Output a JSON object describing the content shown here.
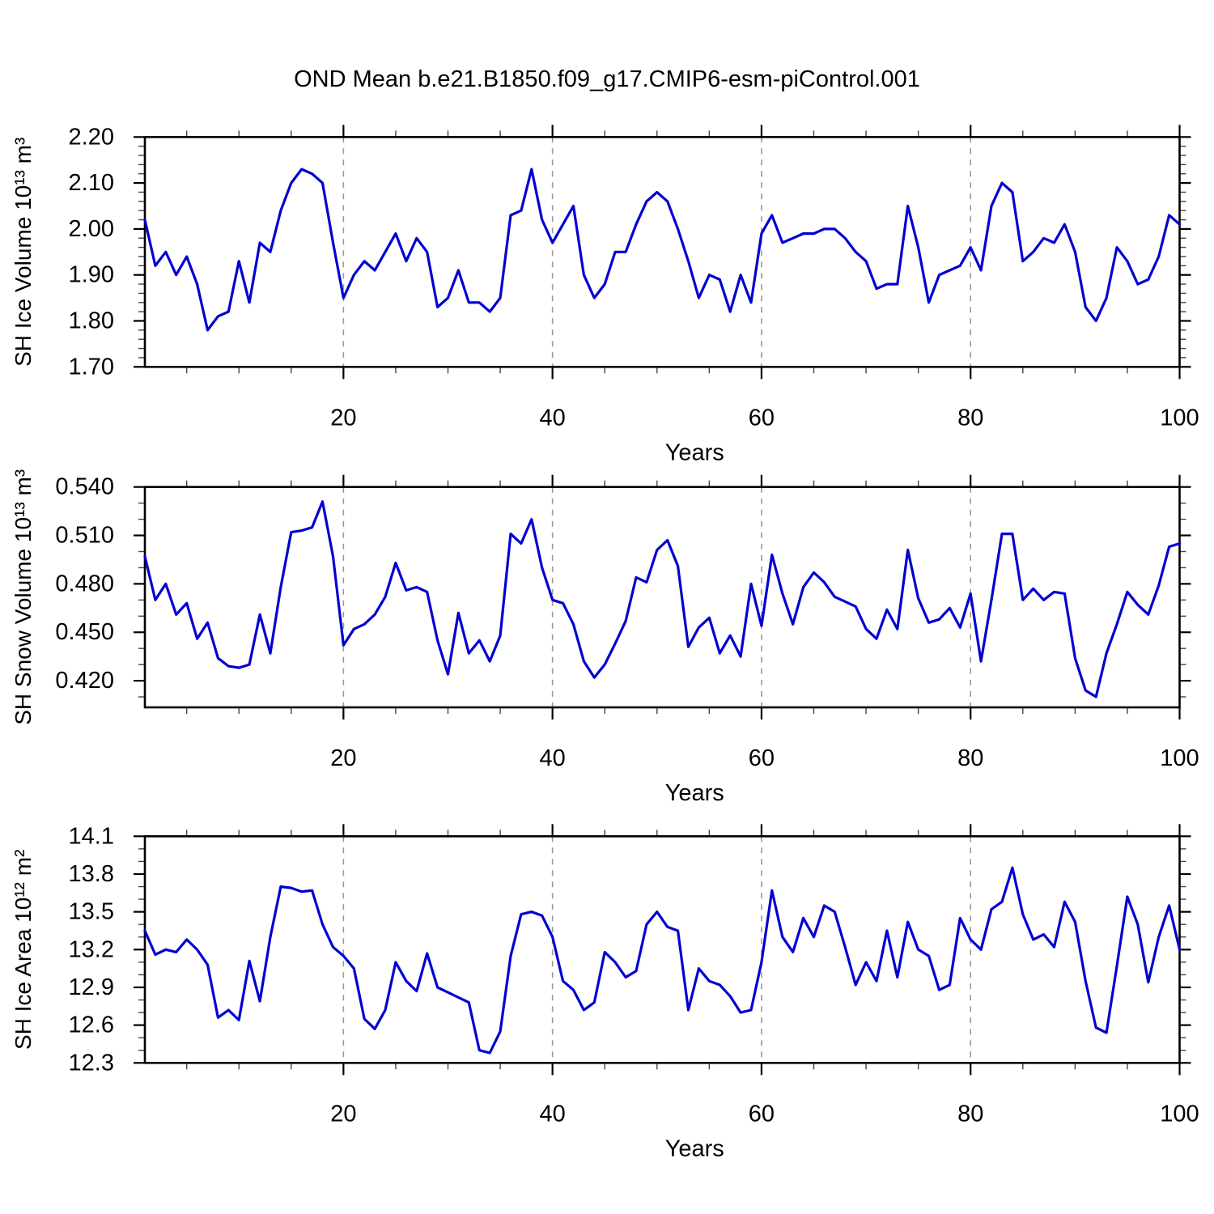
{
  "title": "OND Mean b.e21.B1850.f09_g17.CMIP6-esm-piControl.001",
  "colors": {
    "line": "#0000D2",
    "grid": "#999999",
    "frame": "#000000",
    "background": "#FFFFFF"
  },
  "chart_data": [
    {
      "type": "line",
      "panel": "ice-volume",
      "ylabel": "SH Ice Volume 10¹³ m³",
      "xlabel": "Years",
      "ylim": [
        1.7,
        2.2
      ],
      "yticks": [
        1.7,
        1.8,
        1.9,
        2.0,
        2.1,
        2.2
      ],
      "ytick_labels": [
        "1.70",
        "1.80",
        "1.90",
        "2.00",
        "2.10",
        "2.20"
      ],
      "yminor_step": 0.02,
      "xlim": [
        1,
        100
      ],
      "xticks": [
        20,
        40,
        60,
        80,
        100
      ],
      "xtick_labels": [
        "20",
        "40",
        "60",
        "80",
        "100"
      ],
      "xminor_step": 5,
      "grid_x": [
        20,
        40,
        60,
        80
      ],
      "x_start": 1,
      "values": [
        2.02,
        1.92,
        1.95,
        1.9,
        1.94,
        1.88,
        1.78,
        1.81,
        1.82,
        1.93,
        1.84,
        1.97,
        1.95,
        2.04,
        2.1,
        2.13,
        2.12,
        2.1,
        1.97,
        1.85,
        1.9,
        1.93,
        1.91,
        1.95,
        1.99,
        1.93,
        1.98,
        1.95,
        1.83,
        1.85,
        1.91,
        1.84,
        1.84,
        1.82,
        1.85,
        2.03,
        2.04,
        2.13,
        2.02,
        1.97,
        2.01,
        2.05,
        1.9,
        1.85,
        1.88,
        1.95,
        1.95,
        2.01,
        2.06,
        2.08,
        2.06,
        2.0,
        1.93,
        1.85,
        1.9,
        1.89,
        1.82,
        1.9,
        1.84,
        1.99,
        2.03,
        1.97,
        1.98,
        1.99,
        1.99,
        2.0,
        2.0,
        1.98,
        1.95,
        1.93,
        1.87,
        1.88,
        1.88,
        2.05,
        1.96,
        1.84,
        1.9,
        1.91,
        1.92,
        1.96,
        1.91,
        2.05,
        2.1,
        2.08,
        1.93,
        1.95,
        1.98,
        1.97,
        2.01,
        1.95,
        1.83,
        1.8,
        1.85,
        1.96,
        1.93,
        1.88,
        1.89,
        1.94,
        2.03,
        2.01
      ]
    },
    {
      "type": "line",
      "panel": "snow-volume",
      "ylabel": "SH Snow Volume 10¹³ m³",
      "xlabel": "Years",
      "ylim": [
        0.4035,
        0.54
      ],
      "yticks": [
        0.42,
        0.45,
        0.48,
        0.51,
        0.54
      ],
      "ytick_labels": [
        "0.420",
        "0.450",
        "0.480",
        "0.510",
        "0.540"
      ],
      "yminor_step": 0.01,
      "xlim": [
        1,
        100
      ],
      "xticks": [
        20,
        40,
        60,
        80,
        100
      ],
      "xtick_labels": [
        "20",
        "40",
        "60",
        "80",
        "100"
      ],
      "xminor_step": 5,
      "grid_x": [
        20,
        40,
        60,
        80
      ],
      "x_start": 1,
      "values": [
        0.497,
        0.47,
        0.48,
        0.461,
        0.468,
        0.446,
        0.456,
        0.434,
        0.429,
        0.428,
        0.43,
        0.461,
        0.437,
        0.478,
        0.512,
        0.513,
        0.515,
        0.531,
        0.497,
        0.442,
        0.452,
        0.455,
        0.461,
        0.472,
        0.493,
        0.476,
        0.478,
        0.475,
        0.445,
        0.424,
        0.462,
        0.437,
        0.445,
        0.432,
        0.448,
        0.511,
        0.505,
        0.52,
        0.49,
        0.47,
        0.468,
        0.455,
        0.432,
        0.422,
        0.43,
        0.443,
        0.457,
        0.484,
        0.481,
        0.501,
        0.507,
        0.491,
        0.441,
        0.453,
        0.459,
        0.437,
        0.448,
        0.435,
        0.48,
        0.454,
        0.498,
        0.474,
        0.455,
        0.478,
        0.487,
        0.481,
        0.472,
        0.469,
        0.466,
        0.452,
        0.446,
        0.464,
        0.452,
        0.501,
        0.471,
        0.456,
        0.458,
        0.465,
        0.453,
        0.474,
        0.432,
        0.47,
        0.511,
        0.511,
        0.47,
        0.477,
        0.47,
        0.475,
        0.474,
        0.434,
        0.414,
        0.41,
        0.437,
        0.455,
        0.475,
        0.467,
        0.461,
        0.479,
        0.503,
        0.505
      ]
    },
    {
      "type": "line",
      "panel": "ice-area",
      "ylabel": "SH Ice Area 10¹² m²",
      "xlabel": "Years",
      "ylim": [
        12.3,
        14.1
      ],
      "yticks": [
        12.3,
        12.6,
        12.9,
        13.2,
        13.5,
        13.8,
        14.1
      ],
      "ytick_labels": [
        "12.3",
        "12.6",
        "12.9",
        "13.2",
        "13.5",
        "13.8",
        "14.1"
      ],
      "yminor_step": 0.1,
      "xlim": [
        1,
        100
      ],
      "xticks": [
        20,
        40,
        60,
        80,
        100
      ],
      "xtick_labels": [
        "20",
        "40",
        "60",
        "80",
        "100"
      ],
      "xminor_step": 5,
      "grid_x": [
        20,
        40,
        60,
        80
      ],
      "x_start": 1,
      "values": [
        13.35,
        13.16,
        13.2,
        13.18,
        13.28,
        13.2,
        13.08,
        12.66,
        12.72,
        12.64,
        13.11,
        12.79,
        13.3,
        13.7,
        13.69,
        13.66,
        13.67,
        13.4,
        13.22,
        13.15,
        13.05,
        12.65,
        12.57,
        12.72,
        13.1,
        12.95,
        12.87,
        13.17,
        12.9,
        12.86,
        12.82,
        12.78,
        12.4,
        12.38,
        12.55,
        13.15,
        13.48,
        13.5,
        13.47,
        13.3,
        12.95,
        12.88,
        12.72,
        12.78,
        13.18,
        13.1,
        12.98,
        13.03,
        13.4,
        13.5,
        13.38,
        13.35,
        12.72,
        13.05,
        12.95,
        12.92,
        12.83,
        12.7,
        12.72,
        13.1,
        13.67,
        13.3,
        13.18,
        13.45,
        13.3,
        13.55,
        13.5,
        13.22,
        12.92,
        13.1,
        12.95,
        13.35,
        12.98,
        13.42,
        13.2,
        13.15,
        12.88,
        12.92,
        13.45,
        13.28,
        13.2,
        13.52,
        13.58,
        13.85,
        13.48,
        13.28,
        13.32,
        13.22,
        13.58,
        13.42,
        12.95,
        12.58,
        12.54,
        13.07,
        13.62,
        13.4,
        12.94,
        13.3,
        13.55,
        13.2
      ]
    }
  ]
}
